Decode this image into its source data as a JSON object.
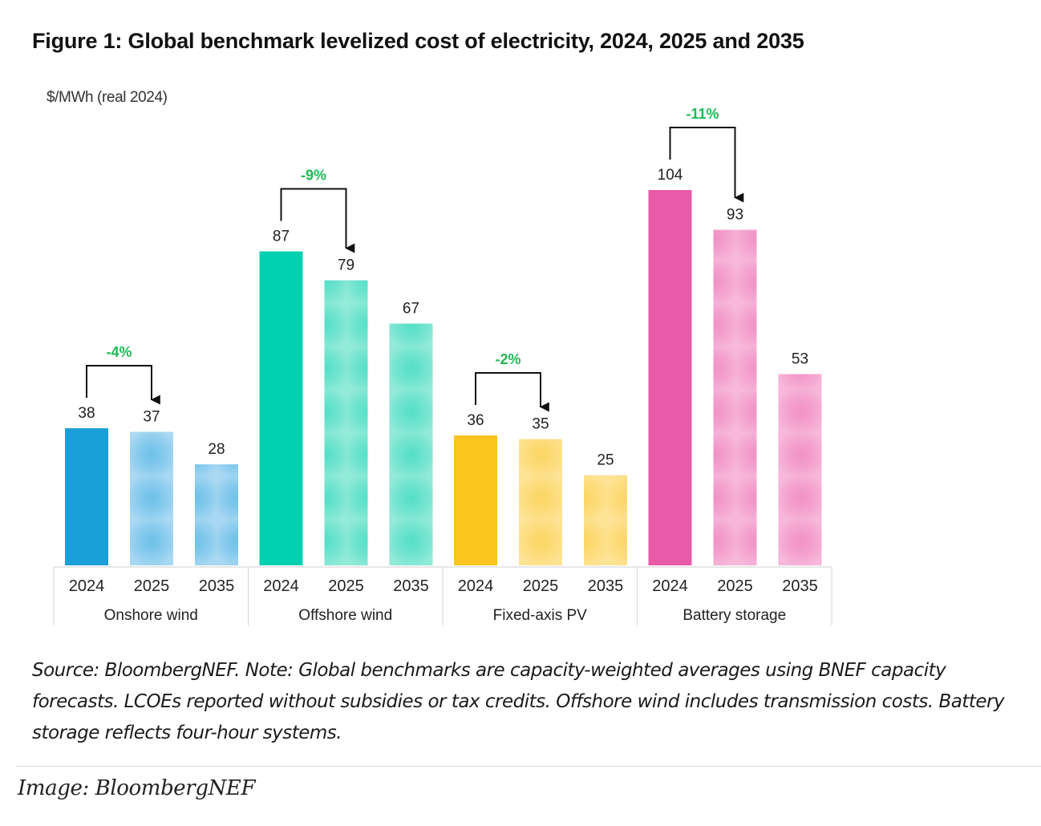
{
  "figure": {
    "title": "Figure 1: Global benchmark levelized cost of electricity, 2024, 2025 and 2035",
    "unit_label": "$/MWh (real 2024)",
    "note": "Source: BloombergNEF. Note: Global benchmarks are capacity-weighted averages using BNEF capacity forecasts. LCOEs reported without subsidies or tax credits. Offshore wind includes transmission costs. Battery storage reflects four-hour systems.",
    "caption": "Image: BloombergNEF"
  },
  "chart_data": {
    "type": "bar",
    "title": "Figure 1: Global benchmark levelized cost of electricity, 2024, 2025 and 2035",
    "ylabel": "$/MWh (real 2024)",
    "ylim": [
      0,
      120
    ],
    "grid": false,
    "legend": "none",
    "years": [
      "2024",
      "2025",
      "2035"
    ],
    "groups": [
      {
        "name": "Onshore wind",
        "color": "#1a9fd9",
        "light": "#a9d8f3",
        "values": [
          38,
          37,
          28
        ],
        "change": "-4%"
      },
      {
        "name": "Offshore wind",
        "color": "#00cfb0",
        "light": "#92ead8",
        "values": [
          87,
          79,
          67
        ],
        "change": "-9%"
      },
      {
        "name": "Fixed-axis PV",
        "color": "#fbc41e",
        "light": "#fde396",
        "values": [
          36,
          35,
          25
        ],
        "change": "-2%"
      },
      {
        "name": "Battery storage",
        "color": "#e95aa8",
        "light": "#f7b8da",
        "values": [
          104,
          93,
          53
        ],
        "change": "-11%"
      }
    ],
    "change_color": "#1db954"
  }
}
